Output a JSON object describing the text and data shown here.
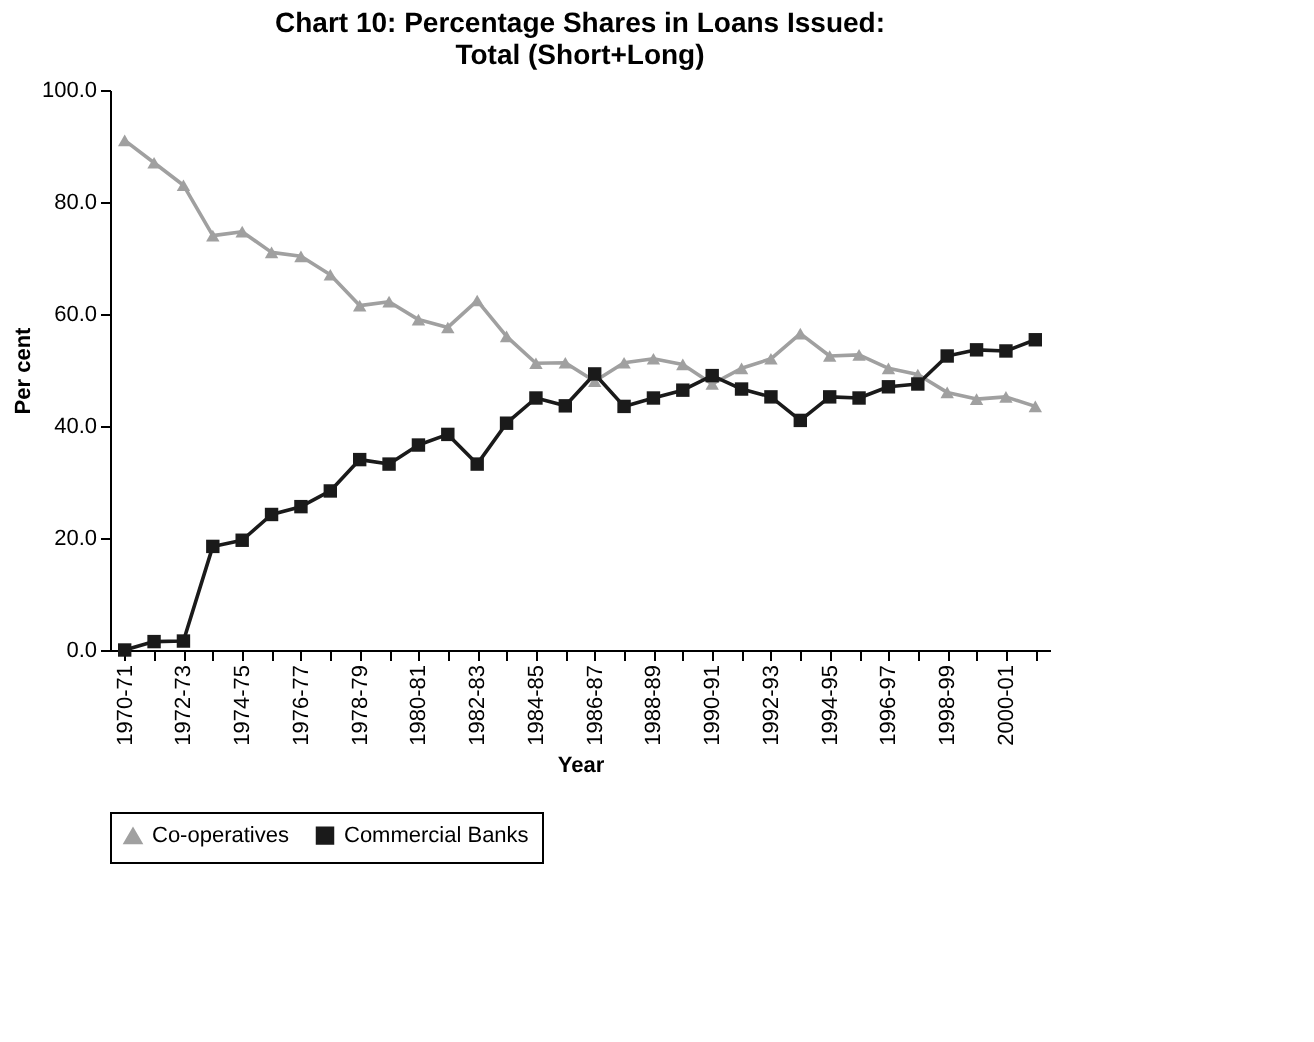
{
  "chart_data": {
    "type": "line",
    "title": "Chart 10: Percentage Shares in Loans Issued:\nTotal (Short+Long)",
    "xlabel": "Year",
    "ylabel": "Per cent",
    "categories": [
      "1970-71",
      null,
      "1972-73",
      null,
      "1974-75",
      null,
      "1976-77",
      null,
      "1978-79",
      null,
      "1980-81",
      null,
      "1982-83",
      null,
      "1984-85",
      null,
      "1986-87",
      null,
      "1988-89",
      null,
      "1990-91",
      null,
      "1992-93",
      null,
      "1994-95",
      null,
      "1996-97",
      null,
      "1998-99",
      null,
      "2000-01",
      null
    ],
    "series": [
      {
        "name": "Co-operatives",
        "color": "#a0a0a0",
        "marker": "triangle",
        "values": [
          91,
          87,
          83,
          74,
          74.7,
          71,
          70.3,
          67,
          61.5,
          62.2,
          59,
          57.6,
          62.4,
          56,
          51.2,
          51.3,
          48,
          51.3,
          52,
          51,
          47.5,
          50.3,
          52,
          56.5,
          52.5,
          52.7,
          50.3,
          49.2,
          46,
          44.8,
          45.2,
          43.5
        ]
      },
      {
        "name": "Commercial Banks",
        "color": "#1a1a1a",
        "marker": "square",
        "values": [
          0,
          1.5,
          1.6,
          18.5,
          19.6,
          24.2,
          25.6,
          28.4,
          34,
          33.2,
          36.6,
          38.5,
          33.2,
          40.5,
          45,
          43.6,
          49.3,
          43.5,
          45,
          46.4,
          49,
          46.6,
          45.2,
          41,
          45.2,
          45,
          47,
          47.5,
          52.5,
          53.6,
          53.4,
          55.4
        ]
      }
    ],
    "ylim": [
      0,
      100
    ],
    "yticks": [
      {
        "value": 0,
        "label": "0.0"
      },
      {
        "value": 20,
        "label": "20.0"
      },
      {
        "value": 40,
        "label": "40.0"
      },
      {
        "value": 60,
        "label": "60.0"
      },
      {
        "value": 80,
        "label": "80.0"
      },
      {
        "value": 100,
        "label": "100.0"
      }
    ],
    "grid": false,
    "legend": "bottom",
    "line_style": "solid"
  }
}
